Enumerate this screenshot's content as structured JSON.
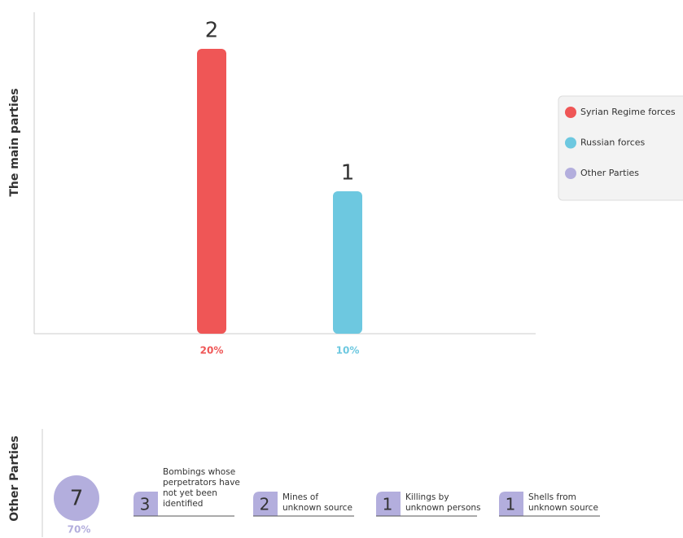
{
  "chart_data": {
    "type": "bar",
    "ylabel": "The main parties",
    "values": [
      2,
      1
    ],
    "colors": [
      "#ef5656",
      "#6dc8e0"
    ],
    "share_labels": [
      "20%",
      "10%"
    ],
    "ylim": [
      0,
      2.2
    ],
    "legend": [
      {
        "name": "Syrian Regime forces",
        "color": "#ef5656"
      },
      {
        "name": "Russian forces",
        "color": "#6dc8e0"
      },
      {
        "name": "Other Parties",
        "color": "#b3aedd"
      }
    ]
  },
  "other_parties": {
    "label": "Other Parties",
    "total": 7,
    "share_label": "70%",
    "color": "#b3aedd",
    "items": [
      {
        "value": 3,
        "label_lines": [
          "Bombings whose",
          "perpetrators have",
          "not yet been",
          "identified"
        ]
      },
      {
        "value": 2,
        "label_lines": [
          "Mines of",
          "unknown source"
        ]
      },
      {
        "value": 1,
        "label_lines": [
          "Killings by",
          "unknown persons"
        ]
      },
      {
        "value": 1,
        "label_lines": [
          "Shells from",
          "unknown source"
        ]
      }
    ]
  }
}
